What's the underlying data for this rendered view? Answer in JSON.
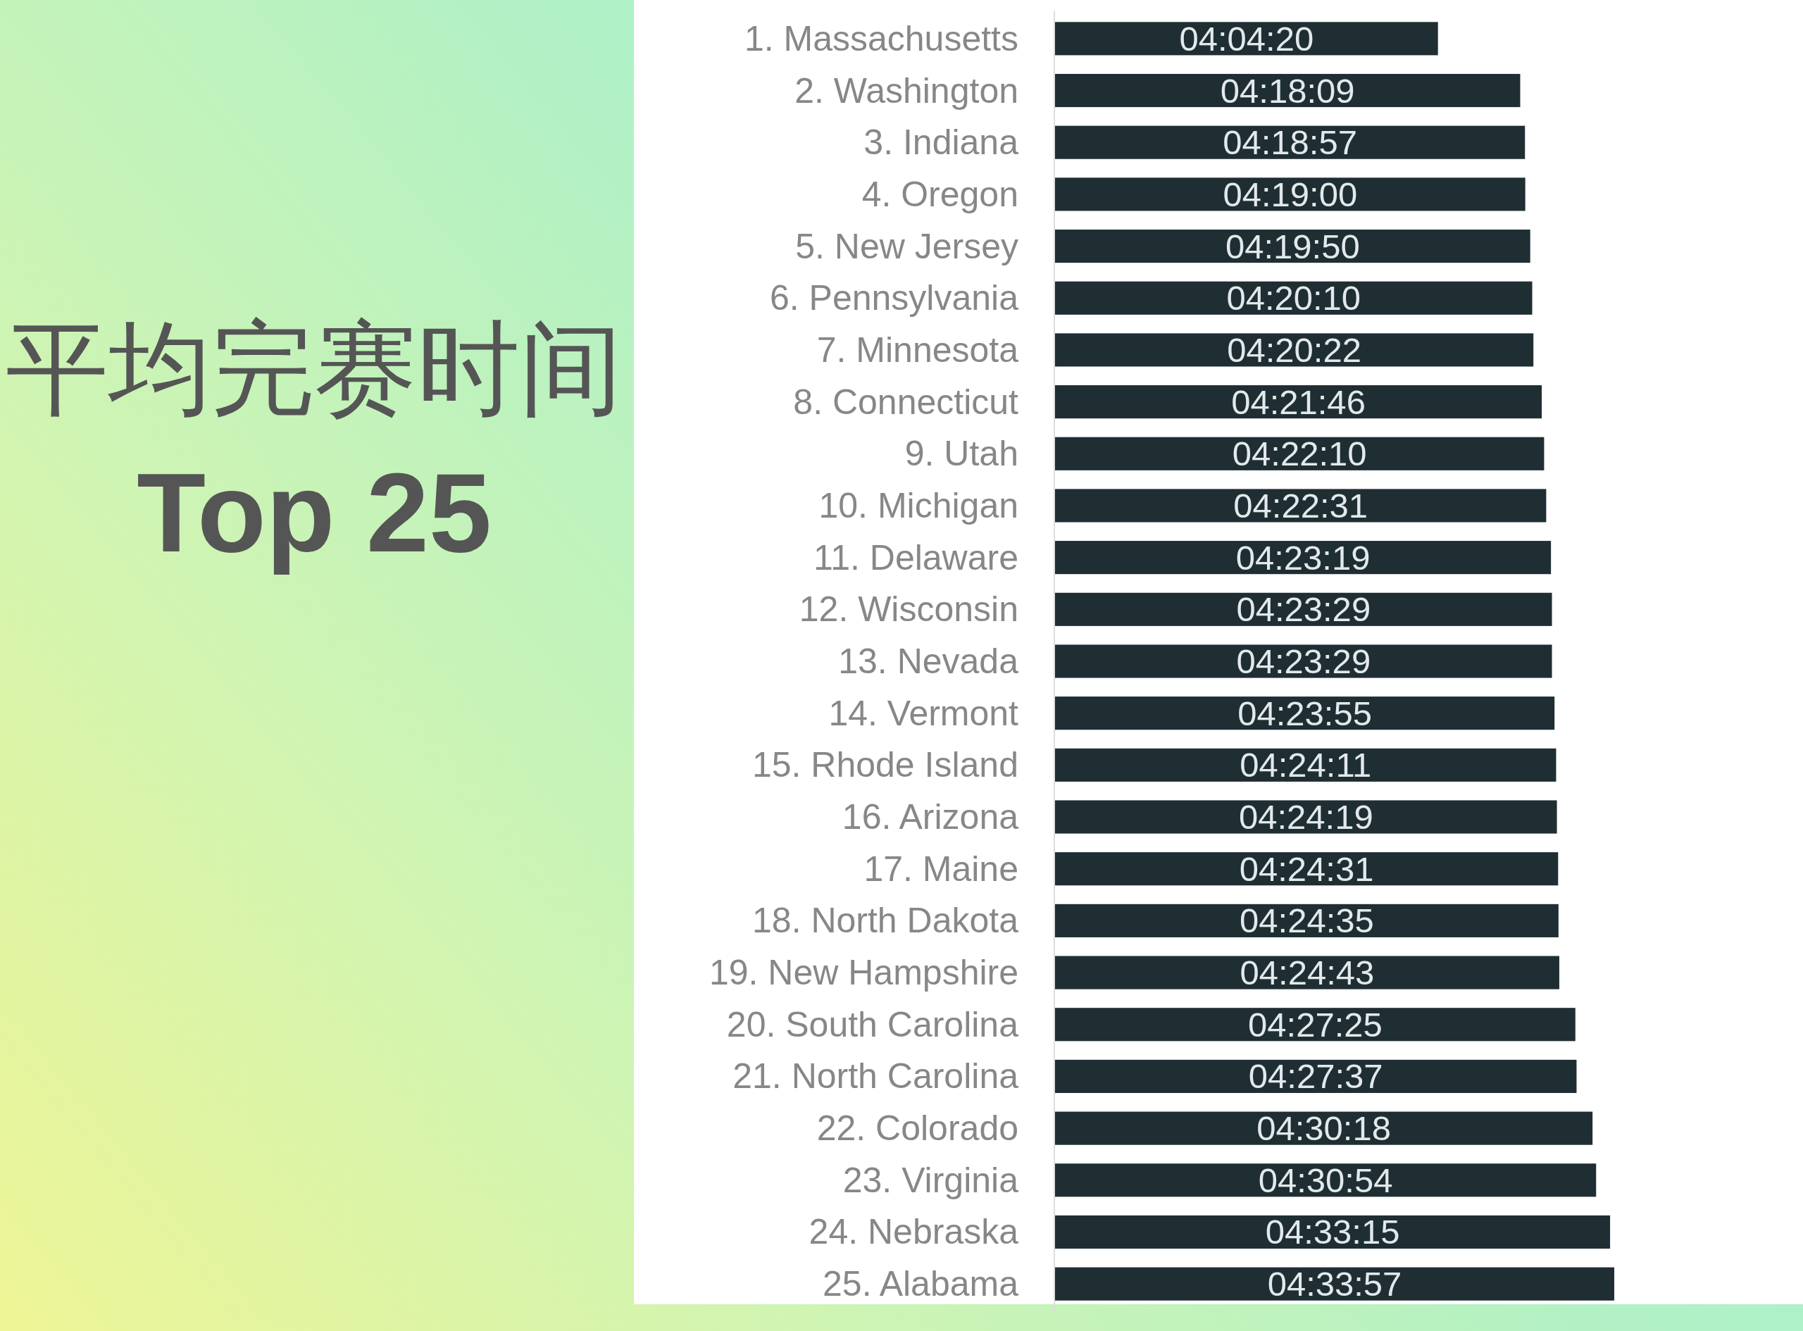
{
  "chart_data": {
    "type": "bar",
    "orientation": "horizontal",
    "title": "平均完赛时间",
    "subtitle": "Top 25",
    "categories": [
      "1. Massachusetts",
      "2. Washington",
      "3. Indiana",
      "4. Oregon",
      "5. New Jersey",
      "6. Pennsylvania",
      "7. Minnesota",
      "8. Connecticut",
      "9. Utah",
      "10. Michigan",
      "11. Delaware",
      "12. Wisconsin",
      "13. Nevada",
      "14. Vermont",
      "15. Rhode Island",
      "16. Arizona",
      "17. Maine",
      "18. North Dakota",
      "19. New Hampshire",
      "20. South Carolina",
      "21. North Carolina",
      "22. Colorado",
      "23. Virginia",
      "24. Nebraska",
      "25. Alabama"
    ],
    "values": [
      4.07222,
      4.3025,
      4.31583,
      4.31667,
      4.33056,
      4.33611,
      4.33944,
      4.36278,
      4.36944,
      4.37528,
      4.38861,
      4.39139,
      4.39139,
      4.39861,
      4.40306,
      4.40528,
      4.40861,
      4.40972,
      4.41194,
      4.45694,
      4.46028,
      4.505,
      4.515,
      4.55417,
      4.56583
    ],
    "value_labels": [
      "04:04:20",
      "04:18:09",
      "04:18:57",
      "04:19:00",
      "04:19:50",
      "04:20:10",
      "04:20:22",
      "04:21:46",
      "04:22:10",
      "04:22:31",
      "04:23:19",
      "04:23:29",
      "04:23:29",
      "04:23:55",
      "04:24:11",
      "04:24:19",
      "04:24:31",
      "04:24:35",
      "04:24:43",
      "04:27:25",
      "04:27:37",
      "04:30:18",
      "04:30:54",
      "04:33:15",
      "04:33:57"
    ],
    "color": "#1f2e33",
    "xlim": [
      3,
      4.56583
    ],
    "tick_labels": "y"
  }
}
